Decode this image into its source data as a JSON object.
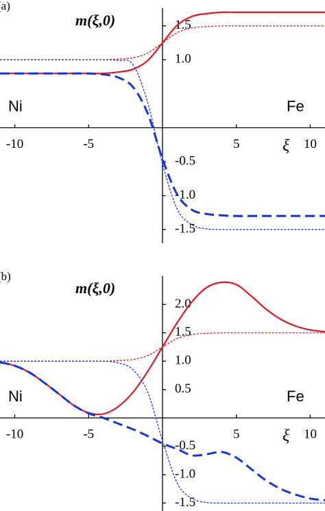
{
  "chart_data": [
    {
      "type": "line",
      "panel_label": "(a)",
      "title": "m(ξ,0)",
      "xlabel": "ξ",
      "annotations": [
        "Ni",
        "Fe"
      ],
      "x": [
        -11,
        -10,
        -9,
        -8,
        -7,
        -6,
        -5,
        -4,
        -3,
        -2,
        -1,
        0,
        1,
        2,
        3,
        4,
        5,
        6,
        7,
        8,
        9,
        10,
        11
      ],
      "xlim": [
        -11,
        11
      ],
      "xticks": [
        -10,
        -5,
        5,
        10
      ],
      "ylim": [
        -1.7,
        1.76
      ],
      "yticks": [
        {
          "value": 1.5,
          "label": "1.5"
        },
        {
          "value": 1,
          "label": "1.0"
        },
        -0.5,
        {
          "value": -1,
          "label": "-1.0"
        },
        -1.5
      ],
      "series": [
        {
          "color": "#e8141e",
          "dash": "solid",
          "values": [
            0.8,
            0.8,
            0.8,
            0.8,
            0.8,
            0.8,
            0.8,
            0.8,
            0.82,
            0.86,
            0.99,
            1.25,
            1.51,
            1.64,
            1.68,
            1.7,
            1.7,
            1.7,
            1.7,
            1.7,
            1.7,
            1.7,
            1.7
          ]
        },
        {
          "color": "#e8141e",
          "dash": "dotted",
          "values": [
            1,
            1,
            1,
            1,
            1,
            1,
            1,
            1,
            1.01,
            1.03,
            1.1,
            1.25,
            1.4,
            1.47,
            1.49,
            1.5,
            1.5,
            1.5,
            1.5,
            1.5,
            1.5,
            1.5,
            1.5
          ]
        },
        {
          "color": "#1432e6",
          "dash": "dashed",
          "values": [
            0.8,
            0.8,
            0.8,
            0.8,
            0.8,
            0.8,
            0.8,
            0.785,
            0.74,
            0.6,
            0.21,
            -0.46,
            -0.985,
            -1.21,
            -1.27,
            -1.29,
            -1.3,
            -1.3,
            -1.3,
            -1.3,
            -1.3,
            -1.3,
            -1.3
          ]
        },
        {
          "color": "#1432e6",
          "dash": "dotted",
          "values": [
            1,
            1,
            1,
            1,
            1,
            1,
            1,
            1,
            0.99,
            0.93,
            0.37,
            -0.53,
            -1.2,
            -1.43,
            -1.49,
            -1.5,
            -1.5,
            -1.5,
            -1.5,
            -1.5,
            -1.5,
            -1.5,
            -1.5
          ]
        }
      ]
    },
    {
      "type": "line",
      "panel_label": "(b)",
      "title": "m(ξ,0)",
      "xlabel": "ξ",
      "annotations": [
        "Ni",
        "Fe"
      ],
      "x": [
        -11,
        -10,
        -9,
        -8,
        -7,
        -6,
        -5,
        -4,
        -3,
        -2,
        -1,
        0,
        1,
        2,
        3,
        4,
        5,
        6,
        7,
        8,
        9,
        10,
        11
      ],
      "xlim": [
        -11,
        11
      ],
      "xticks": [
        -10,
        -5,
        5,
        10
      ],
      "ylim": [
        -1.64,
        2.5
      ],
      "yticks": [
        {
          "value": 2,
          "label": "2.0"
        },
        1.5,
        {
          "value": 1,
          "label": "1.0"
        },
        0.5,
        -0.5,
        {
          "value": -1,
          "label": "-1.0"
        },
        -1.5
      ],
      "series": [
        {
          "color": "#e8141e",
          "dash": "solid",
          "values": [
            0.98,
            0.92,
            0.8,
            0.62,
            0.42,
            0.22,
            0.09,
            0.07,
            0.2,
            0.45,
            0.82,
            1.25,
            1.68,
            2.05,
            2.3,
            2.39,
            2.35,
            2.15,
            1.92,
            1.74,
            1.62,
            1.55,
            1.52
          ]
        },
        {
          "color": "#e8141e",
          "dash": "dotted",
          "values": [
            1,
            1,
            1,
            1,
            1,
            1,
            1,
            1,
            1.01,
            1.03,
            1.1,
            1.25,
            1.4,
            1.47,
            1.49,
            1.5,
            1.5,
            1.5,
            1.5,
            1.5,
            1.5,
            1.5,
            1.5
          ]
        },
        {
          "color": "#1432e6",
          "dash": "dashed",
          "values": [
            0.98,
            0.92,
            0.8,
            0.62,
            0.42,
            0.22,
            0.08,
            0,
            -0.1,
            -0.2,
            -0.32,
            -0.45,
            -0.55,
            -0.66,
            -0.64,
            -0.6,
            -0.7,
            -0.9,
            -1.1,
            -1.25,
            -1.35,
            -1.42,
            -1.45
          ]
        },
        {
          "color": "#1432e6",
          "dash": "dotted",
          "values": [
            1,
            1,
            1,
            1,
            1,
            1,
            1,
            1,
            0.97,
            0.85,
            0.45,
            -0.4,
            -1.15,
            -1.42,
            -1.49,
            -1.5,
            -1.5,
            -1.5,
            -1.5,
            -1.5,
            -1.5,
            -1.5,
            -1.5
          ]
        }
      ]
    }
  ]
}
